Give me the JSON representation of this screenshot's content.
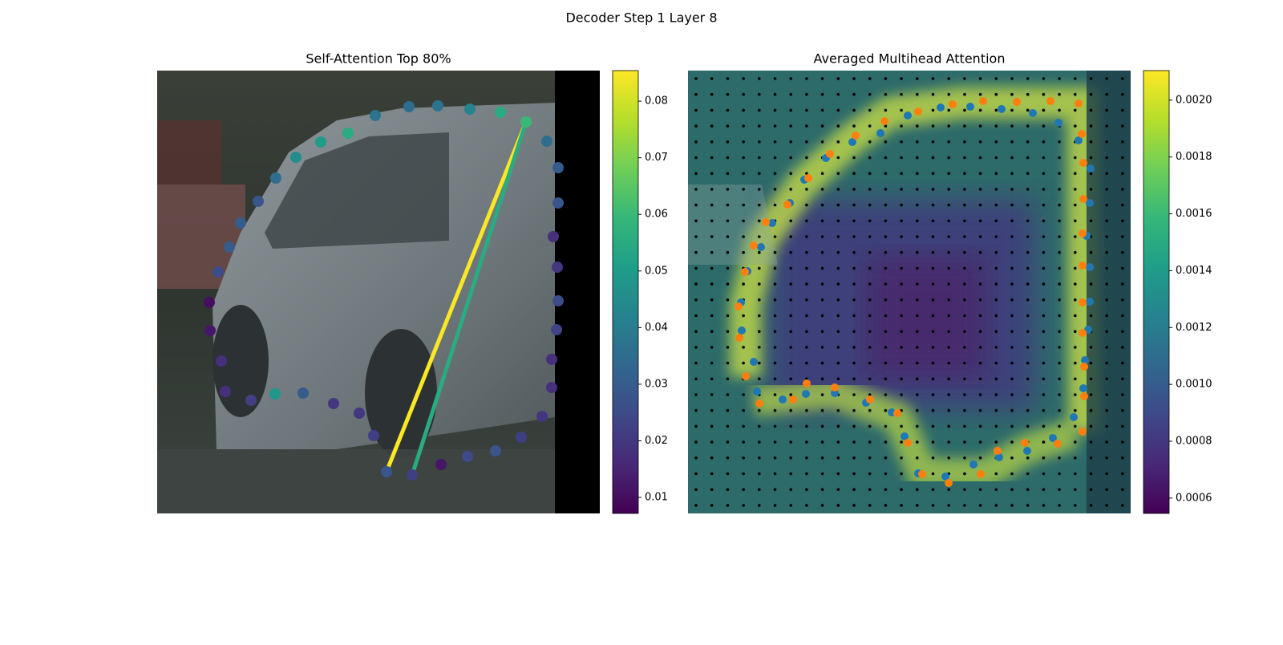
{
  "title": "Decoder Step 1 Layer 8",
  "chart_data": [
    {
      "type": "scatter",
      "title": "Self-Attention Top 80%",
      "xlim": [
        0,
        552
      ],
      "ylim": [
        552,
        0
      ],
      "x": [
        460,
        428,
        390,
        350,
        314,
        272,
        238,
        204,
        173,
        148,
        126,
        104,
        90,
        76,
        65,
        66,
        80,
        85,
        117,
        147,
        182,
        220,
        252,
        270,
        286,
        318,
        354,
        387,
        422,
        454,
        480,
        492,
        492,
        498,
        500,
        499,
        494,
        500,
        500,
        486
      ],
      "y": [
        64,
        52,
        48,
        44,
        45,
        56,
        78,
        89,
        108,
        134,
        163,
        190,
        220,
        251,
        289,
        324,
        362,
        400,
        411,
        403,
        402,
        415,
        427,
        455,
        500,
        504,
        491,
        481,
        474,
        457,
        431,
        395,
        360,
        323,
        287,
        245,
        207,
        165,
        121,
        88
      ],
      "values": [
        0.06,
        0.055,
        0.042,
        0.037,
        0.035,
        0.037,
        0.055,
        0.05,
        0.045,
        0.035,
        0.028,
        0.03,
        0.03,
        0.025,
        0.01,
        0.012,
        0.018,
        0.018,
        0.022,
        0.048,
        0.03,
        0.02,
        0.02,
        0.022,
        0.028,
        0.022,
        0.012,
        0.025,
        0.028,
        0.022,
        0.02,
        0.018,
        0.018,
        0.023,
        0.025,
        0.02,
        0.018,
        0.028,
        0.03,
        0.035
      ],
      "edges": [
        {
          "x": [
            460,
            286
          ],
          "y": [
            64,
            500
          ],
          "value": 0.085
        },
        {
          "x": [
            460,
            318
          ],
          "y": [
            64,
            504
          ],
          "value": 0.055
        }
      ],
      "colormap": "viridis",
      "clim": [
        0.00717,
        0.0854
      ],
      "cticks": [
        0.01,
        0.02,
        0.03,
        0.04,
        0.05,
        0.06,
        0.07,
        0.08
      ]
    },
    {
      "type": "scatter",
      "title": "Averaged Multihead Attention",
      "xlim": [
        0,
        552
      ],
      "ylim": [
        552,
        0
      ],
      "series": [
        {
          "color": "#1f77b4",
          "x": [
            462,
            430,
            391,
            352,
            315,
            274,
            240,
            205,
            172,
            145,
            127,
            105,
            91,
            74,
            66,
            67,
            82,
            86,
            118,
            147,
            183,
            222,
            254,
            270,
            287,
            321,
            356,
            388,
            423,
            455,
            481,
            493,
            495,
            499,
            501,
            501,
            497,
            501,
            502,
            487
          ],
          "y": [
            65,
            53,
            48,
            45,
            46,
            56,
            78,
            89,
            109,
            136,
            165,
            190,
            220,
            250,
            289,
            324,
            363,
            400,
            410,
            403,
            402,
            414,
            426,
            456,
            502,
            506,
            491,
            482,
            474,
            458,
            432,
            396,
            361,
            323,
            288,
            245,
            206,
            165,
            122,
            87
          ]
        },
        {
          "color": "#ff7f0e",
          "x": [
            487,
            452,
            410,
            368,
            330,
            287,
            245,
            209,
            177,
            150,
            124,
            97,
            82,
            71,
            63,
            64,
            72,
            89,
            131,
            148,
            183,
            227,
            261,
            274,
            292,
            325,
            365,
            386,
            420,
            461,
            492,
            494,
            494,
            492,
            492,
            492,
            492,
            493,
            493,
            491
          ],
          "y": [
            41,
            38,
            39,
            38,
            42,
            51,
            63,
            81,
            104,
            134,
            167,
            189,
            218,
            251,
            294,
            333,
            381,
            415,
            410,
            390,
            395,
            410,
            427,
            464,
            503,
            514,
            503,
            474,
            464,
            465,
            450,
            406,
            369,
            327,
            289,
            243,
            203,
            160,
            115,
            79
          ]
        }
      ],
      "colormap": "viridis",
      "clim": [
        0.000546,
        0.002104
      ],
      "cticks": [
        {
          "value": 0.0006,
          "label": "0.0006"
        },
        {
          "value": 0.0008,
          "label": "0.0008"
        },
        {
          "value": 0.001,
          "label": "0.0010"
        },
        {
          "value": 0.0012,
          "label": "0.0012"
        },
        {
          "value": 0.0014,
          "label": "0.0014"
        },
        {
          "value": 0.0016,
          "label": "0.0016"
        },
        {
          "value": 0.0018,
          "label": "0.0018"
        },
        {
          "value": 0.002,
          "label": "0.0020"
        }
      ]
    }
  ]
}
